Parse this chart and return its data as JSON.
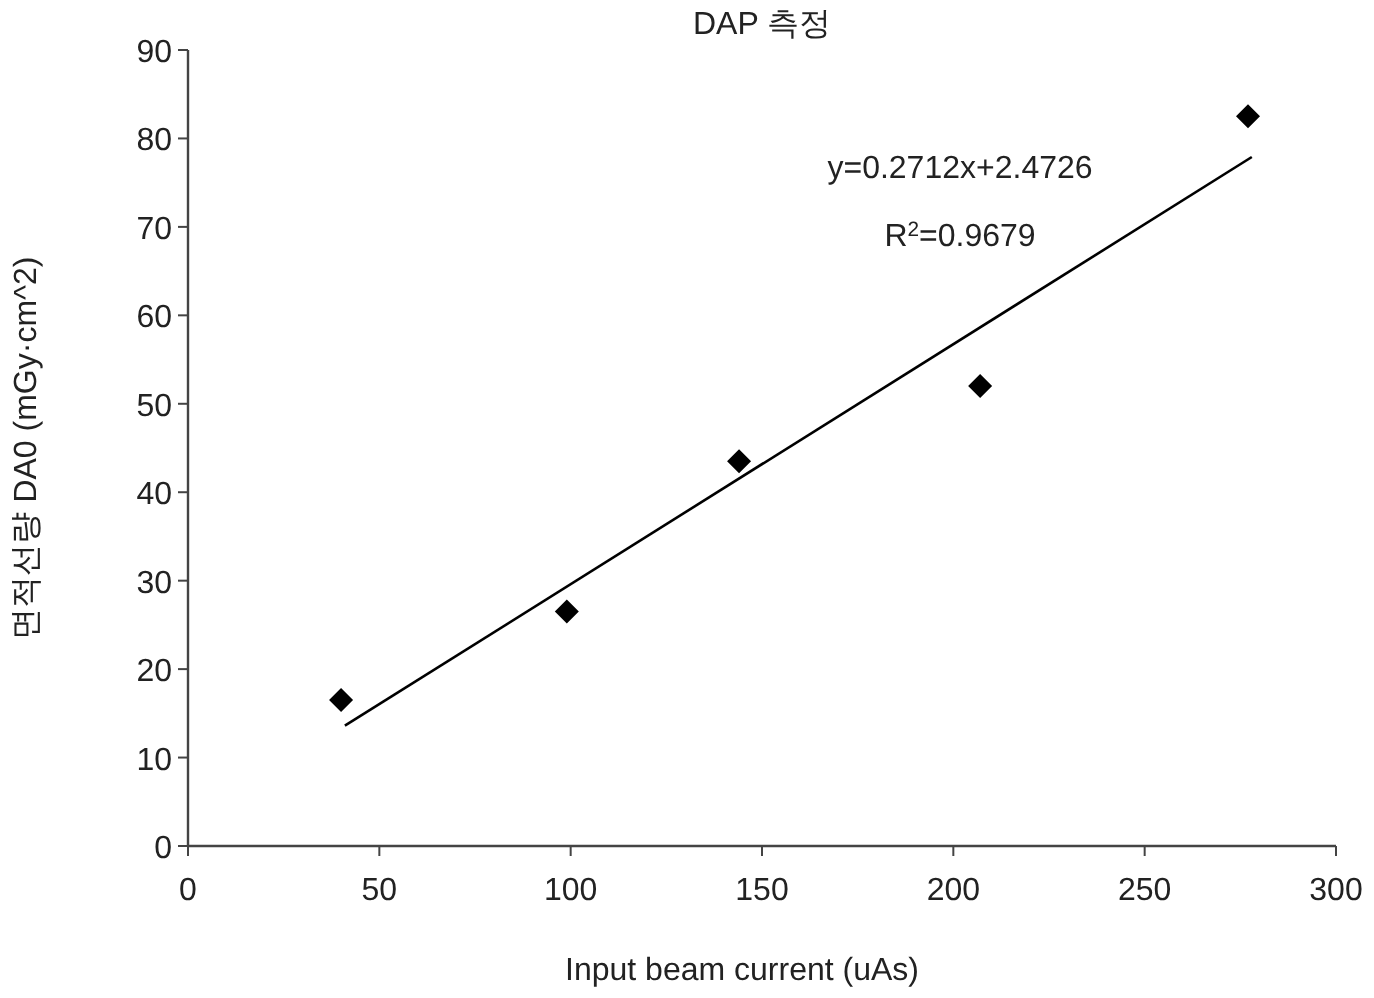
{
  "chart_data": {
    "type": "scatter",
    "title": "DAP 측정",
    "xlabel": "Input beam current (uAs)",
    "ylabel": "면적선량 DA0 (mGy·cm^2)",
    "xlim": [
      0,
      300
    ],
    "xticks": [
      0,
      50,
      100,
      150,
      200,
      250,
      300
    ],
    "ylim": [
      0,
      90
    ],
    "yticks": [
      0,
      10,
      20,
      30,
      40,
      50,
      60,
      70,
      80,
      90
    ],
    "grid": false,
    "series": [
      {
        "marker": "diamond",
        "color": "#000000",
        "x": [
          40,
          99,
          144,
          207,
          277
        ],
        "values": [
          16.5,
          26.5,
          43.5,
          52,
          82.5
        ]
      },
      {
        "type": "line",
        "marker": "none",
        "line_style": "solid",
        "color": "#000000",
        "x": [
          41,
          278
        ],
        "values": [
          13.6,
          77.9
        ]
      }
    ],
    "annotations": [
      "y=0.2712x+2.4726",
      "R$^{2}$=0.9679"
    ]
  }
}
